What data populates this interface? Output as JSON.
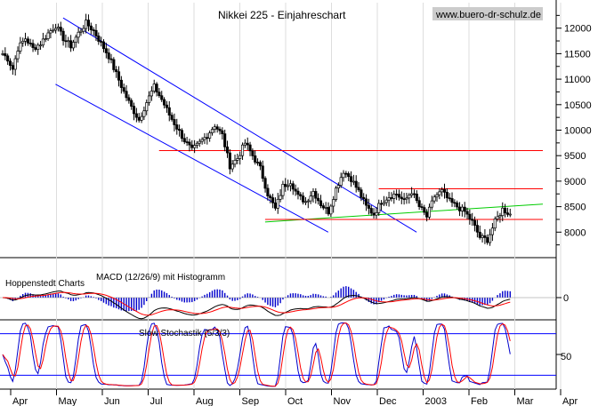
{
  "chart_data": [
    {
      "type": "candlestick",
      "title": "Nikkei 225 - Einjahreschart",
      "source": "www.buero-dr-schulz.de",
      "ylim": [
        7500,
        12500
      ],
      "yticks": [
        8000,
        8500,
        9000,
        9500,
        10000,
        10500,
        11000,
        11500,
        12000
      ],
      "months": [
        "Apr",
        "May",
        "Jun",
        "Jul",
        "Aug",
        "Sep",
        "Oct",
        "Nov",
        "Dec",
        "2003",
        "Feb",
        "Mar",
        "Apr"
      ],
      "price_path": [
        [
          0,
          11500
        ],
        [
          2,
          11400
        ],
        [
          4,
          11200
        ],
        [
          6,
          11600
        ],
        [
          9,
          11800
        ],
        [
          12,
          11600
        ],
        [
          15,
          11700
        ],
        [
          18,
          11900
        ],
        [
          21,
          12050
        ],
        [
          24,
          11800
        ],
        [
          27,
          11650
        ],
        [
          30,
          11900
        ],
        [
          33,
          12100
        ],
        [
          36,
          11950
        ],
        [
          39,
          11700
        ],
        [
          42,
          11450
        ],
        [
          45,
          11100
        ],
        [
          48,
          10750
        ],
        [
          51,
          10450
        ],
        [
          54,
          10200
        ],
        [
          57,
          10550
        ],
        [
          60,
          10850
        ],
        [
          63,
          10600
        ],
        [
          66,
          10300
        ],
        [
          69,
          10050
        ],
        [
          72,
          9800
        ],
        [
          75,
          9600
        ],
        [
          78,
          9750
        ],
        [
          81,
          9900
        ],
        [
          84,
          10100
        ],
        [
          87,
          9900
        ],
        [
          90,
          9300
        ],
        [
          93,
          9450
        ],
        [
          96,
          9750
        ],
        [
          99,
          9500
        ],
        [
          102,
          9250
        ],
        [
          105,
          8750
        ],
        [
          108,
          8450
        ],
        [
          111,
          8900
        ],
        [
          114,
          9000
        ],
        [
          117,
          8700
        ],
        [
          120,
          8600
        ],
        [
          123,
          8800
        ],
        [
          126,
          8550
        ],
        [
          129,
          8400
        ],
        [
          132,
          8850
        ],
        [
          135,
          9200
        ],
        [
          138,
          9050
        ],
        [
          141,
          8800
        ],
        [
          144,
          8500
        ],
        [
          147,
          8350
        ],
        [
          150,
          8600
        ],
        [
          153,
          8700
        ],
        [
          156,
          8750
        ],
        [
          159,
          8600
        ],
        [
          162,
          8800
        ],
        [
          165,
          8500
        ],
        [
          168,
          8300
        ],
        [
          171,
          8700
        ],
        [
          174,
          8800
        ],
        [
          177,
          8600
        ],
        [
          180,
          8500
        ],
        [
          183,
          8400
        ],
        [
          186,
          8200
        ],
        [
          189,
          7900
        ],
        [
          192,
          7850
        ],
        [
          195,
          8200
        ],
        [
          198,
          8450
        ],
        [
          201,
          8350
        ]
      ],
      "trendlines": [
        {
          "name": "channel-upper",
          "color": "#0000ff",
          "from": [
            25,
            12200
          ],
          "to": [
            165,
            8000
          ]
        },
        {
          "name": "channel-lower",
          "color": "#0000ff",
          "from": [
            22,
            10900
          ],
          "to": [
            130,
            8000
          ]
        },
        {
          "name": "support-uptrend",
          "color": "#00cc00",
          "from": [
            105,
            8200
          ],
          "to": [
            215,
            8550
          ]
        },
        {
          "name": "resistance-9600",
          "color": "#ff0000",
          "from": [
            63,
            9600
          ],
          "to": [
            215,
            9600
          ]
        },
        {
          "name": "resistance-8850",
          "color": "#ff0000",
          "from": [
            150,
            8850
          ],
          "to": [
            215,
            8850
          ]
        },
        {
          "name": "support-8250",
          "color": "#ff0000",
          "from": [
            105,
            8250
          ],
          "to": [
            215,
            8250
          ]
        }
      ]
    },
    {
      "type": "macd",
      "label": "MACD (12/26/9) mit Histogramm",
      "watermark": "Hoppenstedt Charts",
      "zero_label": "0"
    },
    {
      "type": "stochastic",
      "label": "Slow Stochastik (5/3/3)",
      "ylim": [
        0,
        100
      ],
      "ytick_label": "50",
      "bands": [
        20,
        80
      ]
    }
  ]
}
